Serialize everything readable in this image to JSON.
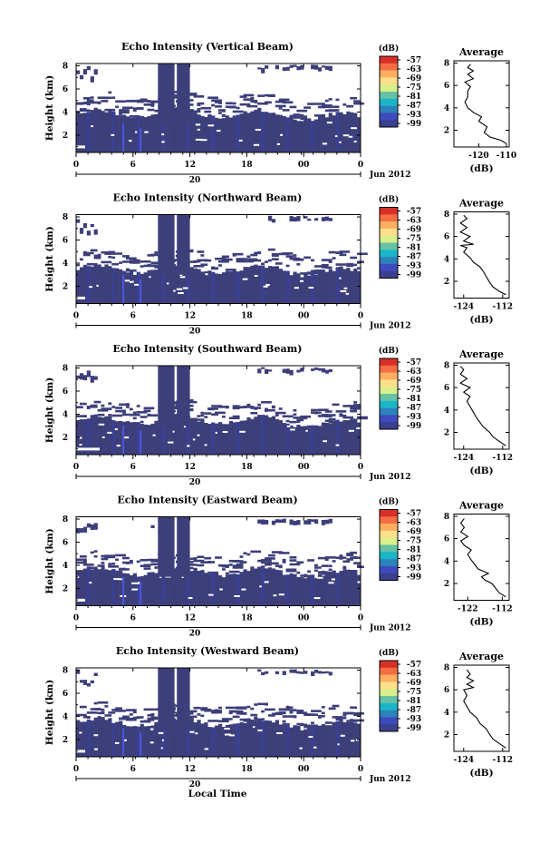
{
  "figure": {
    "xlabel": "Local Time",
    "date_label": "Jun 2012",
    "day_label": "20",
    "ylabel": "Height (km)",
    "cbar_unit": "(dB)",
    "avg_title": "Average",
    "avg_xlabel": "(dB)"
  },
  "colors": {
    "cbar": [
      "#d73027",
      "#f46d43",
      "#fdae61",
      "#fee08b",
      "#d9ef8b",
      "#66c2a5",
      "#1ab6c8",
      "#2b83ba",
      "#3e4bbf",
      "#3a3f8f"
    ],
    "field_main": "#3d3f7a",
    "field_alt": "#3a3f90",
    "spike": "#4a55d8"
  },
  "chart_data": [
    {
      "type": "heatmap",
      "title": "Echo Intensity (Vertical Beam)",
      "x_ticks": [
        "0",
        "6",
        "12",
        "18",
        "00",
        "0"
      ],
      "xlim": [
        0,
        24
      ],
      "y_ticks": [
        "2",
        "4",
        "6",
        "8"
      ],
      "ylim": [
        0.5,
        8.2
      ],
      "cbar_ticks": [
        "-57",
        "-63",
        "-69",
        "-75",
        "-81",
        "-87",
        "-93",
        "-99"
      ],
      "profile": {
        "x_ticks": [
          "-120",
          "-110"
        ],
        "xlim": [
          -129,
          -109
        ],
        "ylim": [
          0.5,
          8.2
        ],
        "y_ticks": [
          "2",
          "4",
          "6",
          "8"
        ],
        "points": [
          [
            -110,
            0.8
          ],
          [
            -112,
            1.1
          ],
          [
            -116,
            1.4
          ],
          [
            -118,
            1.8
          ],
          [
            -117,
            2.3
          ],
          [
            -120,
            2.8
          ],
          [
            -119,
            3.2
          ],
          [
            -122,
            3.6
          ],
          [
            -124,
            4.0
          ],
          [
            -125,
            4.5
          ],
          [
            -124,
            5.0
          ],
          [
            -124,
            5.5
          ],
          [
            -123,
            5.9
          ],
          [
            -125,
            6.3
          ],
          [
            -122,
            6.6
          ],
          [
            -124,
            7.0
          ],
          [
            -122,
            7.3
          ],
          [
            -124,
            7.6
          ],
          [
            -123,
            7.9
          ]
        ]
      }
    },
    {
      "type": "heatmap",
      "title": "Echo Intensity (Northward Beam)",
      "x_ticks": [
        "0",
        "6",
        "12",
        "18",
        "00",
        "0"
      ],
      "xlim": [
        0,
        24
      ],
      "y_ticks": [
        "2",
        "4",
        "6",
        "8"
      ],
      "ylim": [
        0.5,
        8.2
      ],
      "cbar_ticks": [
        "-57",
        "-63",
        "-69",
        "-75",
        "-81",
        "-87",
        "-93",
        "-99"
      ],
      "profile": {
        "x_ticks": [
          "-124",
          "-112"
        ],
        "xlim": [
          -127,
          -110
        ],
        "ylim": [
          0.5,
          8.2
        ],
        "y_ticks": [
          "2",
          "4",
          "6",
          "8"
        ],
        "points": [
          [
            -111,
            0.8
          ],
          [
            -113,
            1.1
          ],
          [
            -115,
            1.5
          ],
          [
            -116,
            1.9
          ],
          [
            -117,
            2.4
          ],
          [
            -118,
            2.9
          ],
          [
            -119,
            3.3
          ],
          [
            -121,
            3.7
          ],
          [
            -122,
            4.1
          ],
          [
            -124,
            4.6
          ],
          [
            -123,
            5.0
          ],
          [
            -125,
            5.2
          ],
          [
            -121,
            5.3
          ],
          [
            -124,
            5.6
          ],
          [
            -122,
            6.0
          ],
          [
            -125,
            6.4
          ],
          [
            -123,
            6.8
          ],
          [
            -125,
            7.2
          ],
          [
            -123,
            7.6
          ],
          [
            -124,
            7.9
          ]
        ]
      }
    },
    {
      "type": "heatmap",
      "title": "Echo Intensity (Southward Beam)",
      "x_ticks": [
        "0",
        "6",
        "12",
        "18",
        "00",
        "0"
      ],
      "xlim": [
        0,
        24
      ],
      "y_ticks": [
        "2",
        "4",
        "6",
        "8"
      ],
      "ylim": [
        0.5,
        8.2
      ],
      "cbar_ticks": [
        "-57",
        "-63",
        "-69",
        "-75",
        "-81",
        "-87",
        "-93",
        "-99"
      ],
      "profile": {
        "x_ticks": [
          "-124",
          "-112"
        ],
        "xlim": [
          -127,
          -110
        ],
        "ylim": [
          0.5,
          8.2
        ],
        "y_ticks": [
          "2",
          "4",
          "6",
          "8"
        ],
        "points": [
          [
            -111,
            0.8
          ],
          [
            -113,
            1.2
          ],
          [
            -115,
            1.6
          ],
          [
            -116,
            2.0
          ],
          [
            -118,
            2.5
          ],
          [
            -119,
            2.9
          ],
          [
            -120,
            3.3
          ],
          [
            -121,
            3.8
          ],
          [
            -122,
            4.3
          ],
          [
            -123,
            4.8
          ],
          [
            -122,
            5.2
          ],
          [
            -124,
            5.6
          ],
          [
            -122,
            6.0
          ],
          [
            -125,
            6.4
          ],
          [
            -123,
            6.8
          ],
          [
            -125,
            7.2
          ],
          [
            -124,
            7.6
          ],
          [
            -125,
            7.9
          ]
        ]
      }
    },
    {
      "type": "heatmap",
      "title": "Echo Intensity (Eastward Beam)",
      "x_ticks": [
        "0",
        "6",
        "12",
        "18",
        "00",
        "0"
      ],
      "xlim": [
        0,
        24
      ],
      "y_ticks": [
        "2",
        "4",
        "6",
        "8"
      ],
      "ylim": [
        0.5,
        8.2
      ],
      "cbar_ticks": [
        "-57",
        "-63",
        "-69",
        "-75",
        "-81",
        "-87",
        "-93",
        "-99"
      ],
      "profile": {
        "x_ticks": [
          "-122",
          "-112"
        ],
        "xlim": [
          -126,
          -110
        ],
        "ylim": [
          0.5,
          8.2
        ],
        "y_ticks": [
          "2",
          "4",
          "6",
          "8"
        ],
        "points": [
          [
            -111,
            0.8
          ],
          [
            -113,
            1.2
          ],
          [
            -114,
            1.6
          ],
          [
            -115,
            2.0
          ],
          [
            -117,
            2.3
          ],
          [
            -118,
            2.6
          ],
          [
            -116,
            2.9
          ],
          [
            -119,
            3.3
          ],
          [
            -120,
            3.7
          ],
          [
            -121,
            4.1
          ],
          [
            -122,
            4.6
          ],
          [
            -121,
            5.0
          ],
          [
            -123,
            5.4
          ],
          [
            -124,
            5.8
          ],
          [
            -122,
            6.2
          ],
          [
            -124,
            6.6
          ],
          [
            -123,
            7.0
          ],
          [
            -124,
            7.4
          ],
          [
            -123,
            7.8
          ]
        ]
      }
    },
    {
      "type": "heatmap",
      "title": "Echo Intensity (Westward Beam)",
      "x_ticks": [
        "0",
        "6",
        "12",
        "18",
        "00",
        "0"
      ],
      "xlim": [
        0,
        24
      ],
      "y_ticks": [
        "2",
        "4",
        "6",
        "8"
      ],
      "ylim": [
        0.5,
        8.2
      ],
      "cbar_ticks": [
        "-57",
        "-63",
        "-69",
        "-75",
        "-81",
        "-87",
        "-93",
        "-99"
      ],
      "profile": {
        "x_ticks": [
          "-124",
          "-112"
        ],
        "xlim": [
          -127,
          -110
        ],
        "ylim": [
          0.5,
          8.2
        ],
        "y_ticks": [
          "2",
          "4",
          "6",
          "8"
        ],
        "points": [
          [
            -111,
            0.8
          ],
          [
            -113,
            1.2
          ],
          [
            -115,
            1.6
          ],
          [
            -116,
            2.0
          ],
          [
            -117,
            2.5
          ],
          [
            -119,
            3.0
          ],
          [
            -120,
            3.5
          ],
          [
            -122,
            4.0
          ],
          [
            -123,
            4.5
          ],
          [
            -124,
            5.0
          ],
          [
            -123,
            5.5
          ],
          [
            -124,
            6.0
          ],
          [
            -121,
            6.2
          ],
          [
            -123,
            6.5
          ],
          [
            -121,
            6.8
          ],
          [
            -123,
            7.1
          ],
          [
            -122,
            7.4
          ],
          [
            -123,
            7.8
          ]
        ]
      }
    }
  ]
}
